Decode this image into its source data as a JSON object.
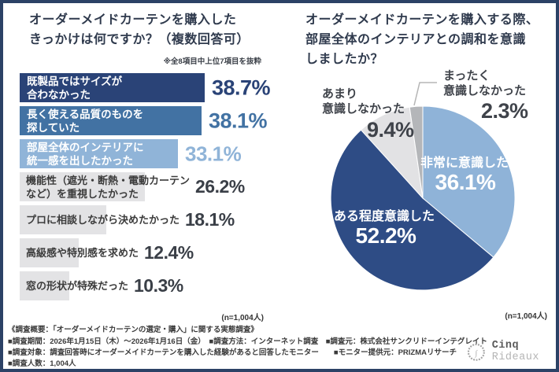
{
  "chart_data": [
    {
      "type": "bar",
      "orientation": "horizontal",
      "title": "オーダーメイドカーテンを購入した\nきっかけは何ですか？（複数回答可）",
      "note": "※全8項目中上位7項目を抜粋",
      "n_label": "(n=1,004人)",
      "unit": "%",
      "xlim": [
        0,
        40
      ],
      "categories": [
        "既製品ではサイズが合わなかった",
        "長く使える品質のものを探していた",
        "部屋全体のインテリアに統一感を出したかった",
        "機能性（遮光・断熱・電動カーテンなど）を重視したかった",
        "プロに相談しながら決めたかった",
        "高級感や特別感を求めた",
        "窓の形状が特殊だった"
      ],
      "values": [
        38.7,
        38.1,
        33.1,
        26.2,
        18.1,
        12.4,
        10.3
      ],
      "bars": [
        {
          "label": "既製品ではサイズが\n合わなかった",
          "value": 38.7,
          "display": "38.7%",
          "bar_color": "#2a4377",
          "value_color": "#2a4377"
        },
        {
          "label": "長く使える品質のものを\n探していた",
          "value": 38.1,
          "display": "38.1%",
          "bar_color": "#4272a3",
          "value_color": "#4272a3"
        },
        {
          "label": "部屋全体のインテリアに\n統一感を出したかった",
          "value": 33.1,
          "display": "33.1%",
          "bar_color": "#90b4d8",
          "value_color": "#90b4d8"
        },
        {
          "label": "機能性（遮光・断熱・電動カーテン\nなど）を重視したかった",
          "value": 26.2,
          "display": "26.2%",
          "bar_color": "#e3e3e5",
          "value_color": "#3a3f47"
        },
        {
          "label": "プロに相談しながら決めたかった",
          "value": 18.1,
          "display": "18.1%",
          "bar_color": "#e3e3e5",
          "value_color": "#3a3f47"
        },
        {
          "label": "高級感や特別感を求めた",
          "value": 12.4,
          "display": "12.4%",
          "bar_color": "#e3e3e5",
          "value_color": "#3a3f47"
        },
        {
          "label": "窓の形状が特殊だった",
          "value": 10.3,
          "display": "10.3%",
          "bar_color": "#e3e3e5",
          "value_color": "#3a3f47"
        }
      ]
    },
    {
      "type": "pie",
      "title": "オーダーメイドカーテンを購入する際、\n部屋全体のインテリアとの調和を意識\nしましたか？",
      "n_label": "(n=1,004人)",
      "start_angle_deg": 0,
      "direction": "clockwise",
      "legend_position": "labels-on-chart",
      "slices": [
        {
          "label": "非常に意識した",
          "value": 36.1,
          "display": "36.1%",
          "color": "#8fb3d8",
          "label_pos": "inside"
        },
        {
          "label": "ある程度意識した",
          "value": 52.2,
          "display": "52.2%",
          "color": "#2e4c85",
          "label_pos": "inside"
        },
        {
          "label": "あまり意識しなかった",
          "label_wrapped": "あまり\n意識しなかった",
          "value": 9.4,
          "display": "9.4%",
          "color": "#e2e2e4",
          "label_pos": "outside"
        },
        {
          "label": "まったく意識しなかった",
          "label_wrapped": "まったく\n意識しなかった",
          "value": 2.3,
          "display": "2.3%",
          "color": "#b4b6b9",
          "label_pos": "outside-leader"
        }
      ]
    }
  ],
  "footer": {
    "heading": "《調査概要：「オーダーメイドカーテンの選定・購入」に関する実態調査》",
    "line1": "■調査期間：2026年1月15日（木）～2026年1月16日（金）　■調査方法：インターネット調査　■調査元：株式会社サンクリドーインテグレイト",
    "line2": "■調査対象：調査回答時にオーダーメイドカーテンを購入した経験があると回答したモニター　　■モニター提供元：PRIZMAリサーチ",
    "line3": "■調査人数：1,004人"
  },
  "logo": {
    "brand": "Cinq",
    "brand_sub": "Rideaux"
  },
  "colors": {
    "frame_border": "#2c4266",
    "navy": "#2a4377",
    "medium_blue": "#4272a3",
    "light_blue": "#90b4d8",
    "pie_navy": "#2e4c85",
    "bar_gray": "#e3e3e5",
    "pie_light_gray": "#e2e2e4",
    "pie_mid_gray": "#b4b6b9",
    "text_dark": "#3a3f47"
  }
}
